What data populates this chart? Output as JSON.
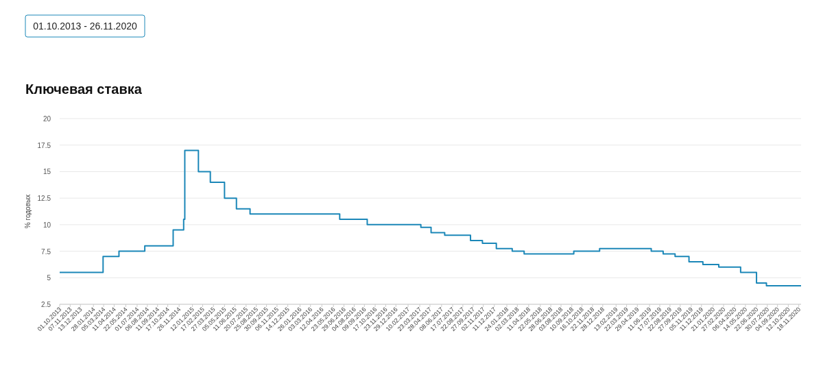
{
  "chart_data": {
    "type": "step",
    "title": "Ключевая ставка",
    "ylabel": "% годовых",
    "annotations": [
      "01.10.2013 - 26.11.2020"
    ],
    "x": [
      "2013-10-01",
      "2014-03-03",
      "2014-04-28",
      "2014-07-28",
      "2014-11-05",
      "2014-12-12",
      "2014-12-16",
      "2015-02-02",
      "2015-03-16",
      "2015-05-05",
      "2015-06-16",
      "2015-08-03",
      "2016-06-14",
      "2016-09-19",
      "2017-03-27",
      "2017-05-02",
      "2017-06-19",
      "2017-09-18",
      "2017-10-30",
      "2017-12-18",
      "2018-02-12",
      "2018-03-26",
      "2018-09-17",
      "2018-12-17",
      "2019-06-17",
      "2019-07-29",
      "2019-09-09",
      "2019-10-28",
      "2019-12-16",
      "2020-02-10",
      "2020-04-27",
      "2020-06-22",
      "2020-07-27",
      "2020-11-26"
    ],
    "series": [
      {
        "color": "#1b87b8",
        "values": [
          5.5,
          7,
          7.5,
          8,
          9.5,
          10.5,
          17,
          15,
          14,
          12.5,
          11.5,
          11,
          10.5,
          10,
          9.75,
          9.25,
          9,
          8.5,
          8.25,
          7.75,
          7.5,
          7.25,
          7.5,
          7.75,
          7.5,
          7.25,
          7,
          6.5,
          6.25,
          6,
          5.5,
          4.5,
          4.25,
          4.25
        ]
      }
    ],
    "ylim": [
      2.5,
      20
    ],
    "yticks": [
      2.5,
      5,
      7.5,
      10,
      12.5,
      15,
      17.5,
      20
    ],
    "grid": "y",
    "xlim": [
      "2013-10-01",
      "2020-11-26"
    ],
    "xticks": [
      {
        "value": "2013-10-01",
        "label": "01.10.2013"
      },
      {
        "value": "2013-11-07",
        "label": "07.11.2013"
      },
      {
        "value": "2013-12-13",
        "label": "13.12.2013"
      },
      {
        "value": "2014-01-28",
        "label": "28.01.2014"
      },
      {
        "value": "2014-03-05",
        "label": "05.03.2014"
      },
      {
        "value": "2014-04-11",
        "label": "11.04.2014"
      },
      {
        "value": "2014-05-22",
        "label": "22.05.2014"
      },
      {
        "value": "2014-07-01",
        "label": "01.07.2014"
      },
      {
        "value": "2014-08-06",
        "label": "06.08.2014"
      },
      {
        "value": "2014-09-11",
        "label": "11.09.2014"
      },
      {
        "value": "2014-10-17",
        "label": "17.10.2014"
      },
      {
        "value": "2014-11-26",
        "label": "26.11.2014"
      },
      {
        "value": "2015-01-12",
        "label": "12.01.2015"
      },
      {
        "value": "2015-02-17",
        "label": "17.02.2015"
      },
      {
        "value": "2015-03-27",
        "label": "27.03.2015"
      },
      {
        "value": "2015-05-05",
        "label": "05.05.2015"
      },
      {
        "value": "2015-06-11",
        "label": "11.06.2015"
      },
      {
        "value": "2015-07-20",
        "label": "20.07.2015"
      },
      {
        "value": "2015-08-25",
        "label": "25.08.2015"
      },
      {
        "value": "2015-09-30",
        "label": "30.09.2015"
      },
      {
        "value": "2015-11-06",
        "label": "06.11.2015"
      },
      {
        "value": "2015-12-14",
        "label": "14.12.2015"
      },
      {
        "value": "2016-01-26",
        "label": "26.01.2016"
      },
      {
        "value": "2016-03-03",
        "label": "03.03.2016"
      },
      {
        "value": "2016-04-12",
        "label": "12.04.2016"
      },
      {
        "value": "2016-05-23",
        "label": "23.05.2016"
      },
      {
        "value": "2016-06-29",
        "label": "29.06.2016"
      },
      {
        "value": "2016-08-04",
        "label": "04.08.2016"
      },
      {
        "value": "2016-09-09",
        "label": "09.09.2016"
      },
      {
        "value": "2016-10-17",
        "label": "17.10.2016"
      },
      {
        "value": "2016-11-23",
        "label": "23.11.2016"
      },
      {
        "value": "2016-12-29",
        "label": "29.12.2016"
      },
      {
        "value": "2017-02-10",
        "label": "10.02.2017"
      },
      {
        "value": "2017-03-23",
        "label": "23.03.2017"
      },
      {
        "value": "2017-04-28",
        "label": "28.04.2017"
      },
      {
        "value": "2017-06-08",
        "label": "08.06.2017"
      },
      {
        "value": "2017-07-17",
        "label": "17.07.2017"
      },
      {
        "value": "2017-08-22",
        "label": "22.08.2017"
      },
      {
        "value": "2017-09-27",
        "label": "27.09.2017"
      },
      {
        "value": "2017-11-02",
        "label": "02.11.2017"
      },
      {
        "value": "2017-12-11",
        "label": "11.12.2017"
      },
      {
        "value": "2018-01-24",
        "label": "24.01.2018"
      },
      {
        "value": "2018-03-02",
        "label": "02.03.2018"
      },
      {
        "value": "2018-04-11",
        "label": "11.04.2018"
      },
      {
        "value": "2018-05-22",
        "label": "22.05.2018"
      },
      {
        "value": "2018-06-28",
        "label": "28.06.2018"
      },
      {
        "value": "2018-08-03",
        "label": "03.08.2018"
      },
      {
        "value": "2018-09-10",
        "label": "10.09.2018"
      },
      {
        "value": "2018-10-16",
        "label": "16.10.2018"
      },
      {
        "value": "2018-11-22",
        "label": "22.11.2018"
      },
      {
        "value": "2018-12-28",
        "label": "28.12.2018"
      },
      {
        "value": "2019-02-13",
        "label": "13.02.2019"
      },
      {
        "value": "2019-03-22",
        "label": "22.03.2019"
      },
      {
        "value": "2019-04-29",
        "label": "29.04.2019"
      },
      {
        "value": "2019-06-11",
        "label": "11.06.2019"
      },
      {
        "value": "2019-07-17",
        "label": "17.07.2019"
      },
      {
        "value": "2019-08-22",
        "label": "22.08.2019"
      },
      {
        "value": "2019-09-27",
        "label": "27.09.2019"
      },
      {
        "value": "2019-11-05",
        "label": "05.11.2019"
      },
      {
        "value": "2019-12-11",
        "label": "11.12.2019"
      },
      {
        "value": "2020-01-21",
        "label": "21.01.2020"
      },
      {
        "value": "2020-02-27",
        "label": "27.02.2020"
      },
      {
        "value": "2020-04-06",
        "label": "06.04.2020"
      },
      {
        "value": "2020-05-14",
        "label": "14.05.2020"
      },
      {
        "value": "2020-06-22",
        "label": "22.06.2020"
      },
      {
        "value": "2020-07-30",
        "label": "30.07.2020"
      },
      {
        "value": "2020-09-04",
        "label": "04.09.2020"
      },
      {
        "value": "2020-10-12",
        "label": "12.10.2020"
      },
      {
        "value": "2020-11-18",
        "label": "18.11.2020"
      }
    ]
  }
}
